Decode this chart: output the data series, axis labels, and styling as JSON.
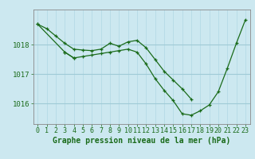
{
  "title": "Graphe pression niveau de la mer (hPa)",
  "bg_color": "#cce8f0",
  "plot_bg_color": "#cce8f0",
  "grid_color_v": "#b0d8e4",
  "grid_color_h": "#9fcad6",
  "line_color": "#1a6b1a",
  "marker_color": "#1a6b1a",
  "xlim": [
    -0.5,
    23.5
  ],
  "ylim": [
    1015.3,
    1019.2
  ],
  "yticks": [
    1016,
    1017,
    1018
  ],
  "xticks": [
    0,
    1,
    2,
    3,
    4,
    5,
    6,
    7,
    8,
    9,
    10,
    11,
    12,
    13,
    14,
    15,
    16,
    17,
    18,
    19,
    20,
    21,
    22,
    23
  ],
  "series1_x": [
    0,
    1,
    2,
    3,
    4,
    5,
    6,
    7,
    8,
    9,
    10,
    11,
    12,
    13,
    14,
    15,
    16,
    17
  ],
  "series1_y": [
    1018.7,
    1018.55,
    1018.3,
    1018.05,
    1017.85,
    1017.82,
    1017.8,
    1017.85,
    1018.05,
    1017.95,
    1018.1,
    1018.15,
    1017.9,
    1017.5,
    1017.1,
    1016.8,
    1016.5,
    1016.15
  ],
  "series2_x": [
    3,
    4,
    5,
    6,
    7,
    8,
    9,
    10,
    11,
    12,
    13,
    14,
    15,
    16,
    17,
    18,
    19,
    20,
    21,
    22,
    23
  ],
  "series2_y": [
    1017.75,
    1017.55,
    1017.6,
    1017.65,
    1017.7,
    1017.75,
    1017.8,
    1017.85,
    1017.75,
    1017.35,
    1016.85,
    1016.45,
    1016.1,
    1015.65,
    1015.6,
    1015.75,
    1015.95,
    1016.4,
    1017.2,
    1018.05,
    1018.85
  ],
  "series3_x": [
    0,
    3,
    4
  ],
  "series3_y": [
    1018.7,
    1017.75,
    1017.55
  ],
  "xlabel_fontsize": 6.5,
  "ylabel_fontsize": 6.5,
  "tick_fontsize": 6,
  "title_fontsize": 7,
  "title_color": "#1a6b1a",
  "tick_color": "#1a6b1a",
  "spine_color": "#888888"
}
